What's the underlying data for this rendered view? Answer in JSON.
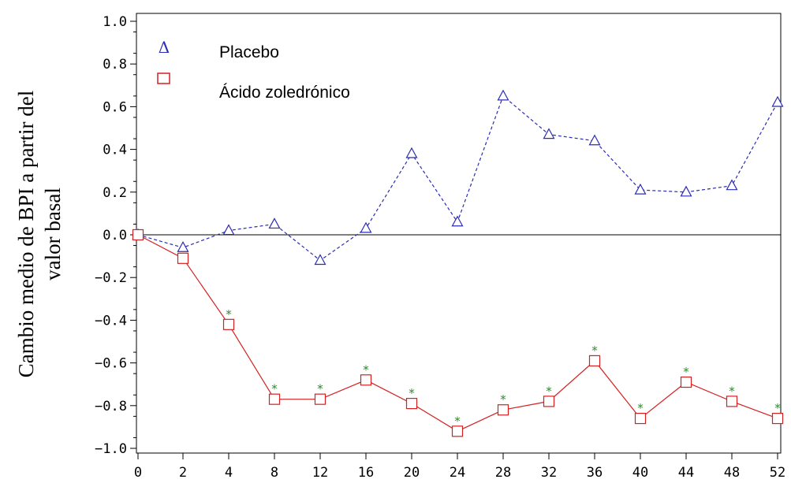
{
  "chart_data": {
    "type": "line",
    "title": "",
    "xlabel": "",
    "ylabel_lines": [
      "Cambio medio de BPI a partir del",
      "valor basal"
    ],
    "x": [
      0,
      2,
      4,
      8,
      12,
      16,
      20,
      24,
      28,
      32,
      36,
      40,
      44,
      48,
      52
    ],
    "x_tick_labels": [
      "0",
      "2",
      "4",
      "8",
      "12",
      "16",
      "20",
      "24",
      "28",
      "32",
      "36",
      "40",
      "44",
      "48",
      "52"
    ],
    "ylim": [
      -1.0,
      1.0
    ],
    "y_ticks": [
      1.0,
      0.8,
      0.6,
      0.4,
      0.2,
      0.0,
      -0.2,
      -0.4,
      -0.6,
      -0.8,
      -1.0
    ],
    "y_tick_labels": [
      "1.0",
      "0.8",
      "0.6",
      "0.4",
      "0.2",
      "0.0",
      "−0.2",
      "−0.4",
      "−0.6",
      "−0.8",
      "−1.0"
    ],
    "reference_line": 0.0,
    "legend_position": "top-left",
    "series": [
      {
        "name": "Placebo",
        "legend_symbol": "Δ",
        "marker": "triangle",
        "line_style": "dashed",
        "color": "#2b2bb5",
        "values": [
          0.0,
          -0.06,
          0.02,
          0.05,
          -0.12,
          0.03,
          0.38,
          0.06,
          0.65,
          0.47,
          0.44,
          0.21,
          0.2,
          0.23,
          0.62
        ]
      },
      {
        "name": "Ácido zoledrónico",
        "legend_symbol": "",
        "marker": "square",
        "line_style": "solid",
        "color": "#d42020",
        "values": [
          0.0,
          -0.11,
          -0.42,
          -0.77,
          -0.77,
          -0.68,
          -0.79,
          -0.92,
          -0.82,
          -0.78,
          -0.59,
          -0.86,
          -0.69,
          -0.78,
          -0.86
        ],
        "significance_marks": [
          "",
          "",
          "*",
          "*",
          "*",
          "*",
          "*",
          "*",
          "*",
          "*",
          "*",
          "*",
          "*",
          "*",
          "*"
        ]
      }
    ],
    "significance_color": "#2e8b2e"
  }
}
